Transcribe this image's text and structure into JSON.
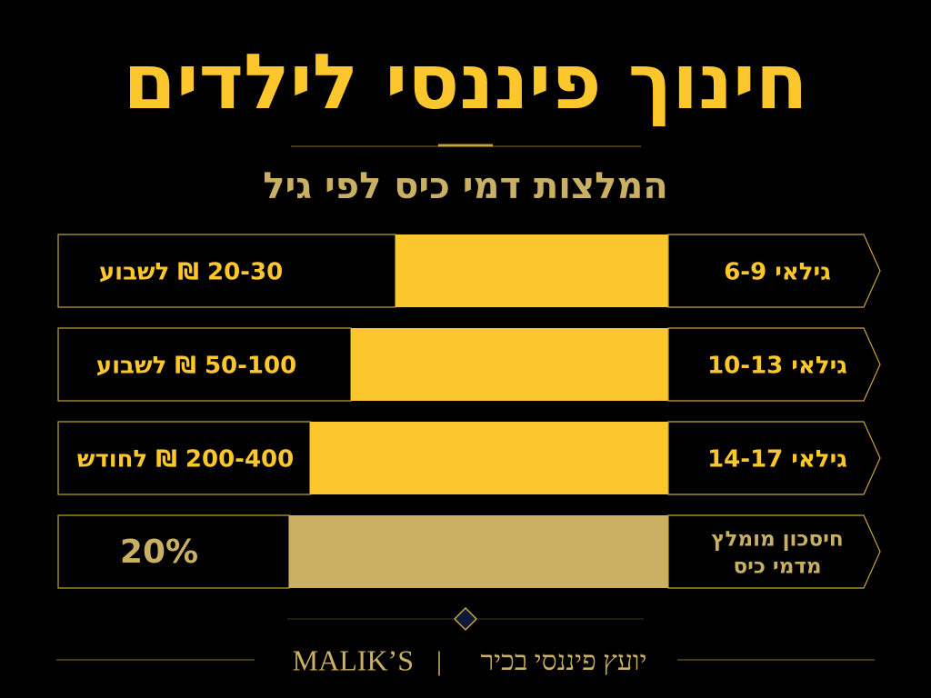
{
  "title": "חינוך פיננסי לילדים",
  "subtitle": "המלצות דמי כיס לפי גיל",
  "rows": [
    {
      "label": [
        "גילאי 6-9"
      ],
      "value": "20-30 ₪ לשבוע"
    },
    {
      "label": [
        "גילאי 10-13"
      ],
      "value": "50-100 ₪ לשבוע"
    },
    {
      "label": [
        "גילאי 14-17"
      ],
      "value": "200-400 ₪ לחודש"
    },
    {
      "label": [
        "חיסכון מומלץ",
        "מדמי כיס"
      ],
      "value": "20%"
    }
  ],
  "footer": {
    "brand": "MALIK’S",
    "separator": "|",
    "tagline": "יועץ פיננסי בכיר"
  }
}
